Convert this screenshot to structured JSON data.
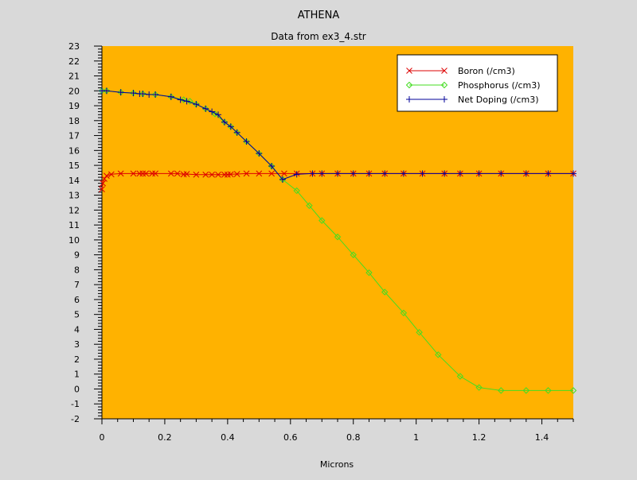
{
  "chart_data": {
    "type": "line",
    "title": "ATHENA",
    "subtitle": "Data from ex3_4.str",
    "xlabel": "Microns",
    "ylabel": "",
    "xlim": [
      0,
      1.5
    ],
    "ylim": [
      -2,
      23
    ],
    "x_ticks": [
      "0",
      "0.2",
      "0.4",
      "0.6",
      "0.8",
      "1",
      "1.2",
      "1.4"
    ],
    "x_tick_values": [
      0,
      0.2,
      0.4,
      0.6,
      0.8,
      1.0,
      1.2,
      1.4
    ],
    "y_ticks": [
      "-2",
      "-1",
      "0",
      "1",
      "2",
      "3",
      "4",
      "5",
      "6",
      "7",
      "8",
      "9",
      "10",
      "11",
      "12",
      "13",
      "14",
      "15",
      "16",
      "17",
      "18",
      "19",
      "20",
      "21",
      "22",
      "23"
    ],
    "y_tick_values": [
      -2,
      -1,
      0,
      1,
      2,
      3,
      4,
      5,
      6,
      7,
      8,
      9,
      10,
      11,
      12,
      13,
      14,
      15,
      16,
      17,
      18,
      19,
      20,
      21,
      22,
      23
    ],
    "plot_background": "#ffb200",
    "page_background": "#d9d9d9",
    "grid": false,
    "legend_position": "top-right",
    "series": [
      {
        "name": "Boron (/cm3)",
        "color": "#dd0000",
        "marker": "x",
        "points": [
          [
            0.0,
            13.4
          ],
          [
            0.003,
            13.8
          ],
          [
            0.008,
            14.1
          ],
          [
            0.015,
            14.3
          ],
          [
            0.03,
            14.4
          ],
          [
            0.06,
            14.45
          ],
          [
            0.1,
            14.45
          ],
          [
            0.12,
            14.45
          ],
          [
            0.13,
            14.45
          ],
          [
            0.14,
            14.45
          ],
          [
            0.16,
            14.45
          ],
          [
            0.17,
            14.45
          ],
          [
            0.22,
            14.45
          ],
          [
            0.24,
            14.45
          ],
          [
            0.26,
            14.4
          ],
          [
            0.27,
            14.42
          ],
          [
            0.3,
            14.38
          ],
          [
            0.33,
            14.38
          ],
          [
            0.35,
            14.38
          ],
          [
            0.37,
            14.38
          ],
          [
            0.39,
            14.38
          ],
          [
            0.4,
            14.38
          ],
          [
            0.41,
            14.4
          ],
          [
            0.43,
            14.42
          ],
          [
            0.46,
            14.45
          ],
          [
            0.5,
            14.45
          ],
          [
            0.54,
            14.45
          ],
          [
            0.58,
            14.45
          ],
          [
            0.62,
            14.45
          ],
          [
            0.67,
            14.45
          ],
          [
            0.7,
            14.45
          ],
          [
            0.75,
            14.45
          ],
          [
            0.8,
            14.45
          ],
          [
            0.85,
            14.45
          ],
          [
            0.9,
            14.45
          ],
          [
            0.96,
            14.45
          ],
          [
            1.02,
            14.45
          ],
          [
            1.09,
            14.45
          ],
          [
            1.14,
            14.45
          ],
          [
            1.2,
            14.45
          ],
          [
            1.27,
            14.45
          ],
          [
            1.35,
            14.45
          ],
          [
            1.42,
            14.45
          ],
          [
            1.5,
            14.45
          ]
        ]
      },
      {
        "name": "Phosphorus (/cm3)",
        "color": "#44dd22",
        "marker": "diamond",
        "points": [
          [
            0.0,
            20.0
          ],
          [
            0.015,
            20.0
          ],
          [
            0.06,
            19.9
          ],
          [
            0.1,
            19.85
          ],
          [
            0.13,
            19.8
          ],
          [
            0.17,
            19.75
          ],
          [
            0.22,
            19.6
          ],
          [
            0.26,
            19.4
          ],
          [
            0.28,
            19.3
          ],
          [
            0.3,
            19.1
          ],
          [
            0.33,
            18.8
          ],
          [
            0.36,
            18.45
          ],
          [
            0.39,
            17.9
          ],
          [
            0.41,
            17.6
          ],
          [
            0.43,
            17.2
          ],
          [
            0.46,
            16.6
          ],
          [
            0.5,
            15.8
          ],
          [
            0.54,
            14.95
          ],
          [
            0.575,
            14.05
          ],
          [
            0.62,
            13.3
          ],
          [
            0.66,
            12.3
          ],
          [
            0.7,
            11.3
          ],
          [
            0.75,
            10.2
          ],
          [
            0.8,
            9.0
          ],
          [
            0.85,
            7.8
          ],
          [
            0.9,
            6.5
          ],
          [
            0.96,
            5.1
          ],
          [
            1.01,
            3.8
          ],
          [
            1.07,
            2.3
          ],
          [
            1.14,
            0.85
          ],
          [
            1.2,
            0.1
          ],
          [
            1.27,
            -0.1
          ],
          [
            1.35,
            -0.1
          ],
          [
            1.42,
            -0.1
          ],
          [
            1.5,
            -0.1
          ]
        ]
      },
      {
        "name": "Net Doping (/cm3)",
        "color": "#000099",
        "marker": "plus",
        "points": [
          [
            0.0,
            20.0
          ],
          [
            0.015,
            20.0
          ],
          [
            0.06,
            19.9
          ],
          [
            0.1,
            19.85
          ],
          [
            0.12,
            19.8
          ],
          [
            0.13,
            19.8
          ],
          [
            0.15,
            19.75
          ],
          [
            0.17,
            19.75
          ],
          [
            0.22,
            19.6
          ],
          [
            0.25,
            19.4
          ],
          [
            0.27,
            19.3
          ],
          [
            0.3,
            19.1
          ],
          [
            0.33,
            18.8
          ],
          [
            0.35,
            18.6
          ],
          [
            0.37,
            18.4
          ],
          [
            0.39,
            17.9
          ],
          [
            0.41,
            17.6
          ],
          [
            0.43,
            17.2
          ],
          [
            0.46,
            16.6
          ],
          [
            0.5,
            15.8
          ],
          [
            0.54,
            14.95
          ],
          [
            0.575,
            14.05
          ],
          [
            0.62,
            14.4
          ],
          [
            0.67,
            14.45
          ],
          [
            0.7,
            14.45
          ],
          [
            0.75,
            14.45
          ],
          [
            0.8,
            14.45
          ],
          [
            0.85,
            14.45
          ],
          [
            0.9,
            14.45
          ],
          [
            0.96,
            14.45
          ],
          [
            1.02,
            14.45
          ],
          [
            1.09,
            14.45
          ],
          [
            1.14,
            14.45
          ],
          [
            1.2,
            14.45
          ],
          [
            1.27,
            14.45
          ],
          [
            1.35,
            14.45
          ],
          [
            1.42,
            14.45
          ],
          [
            1.5,
            14.45
          ]
        ]
      }
    ]
  }
}
